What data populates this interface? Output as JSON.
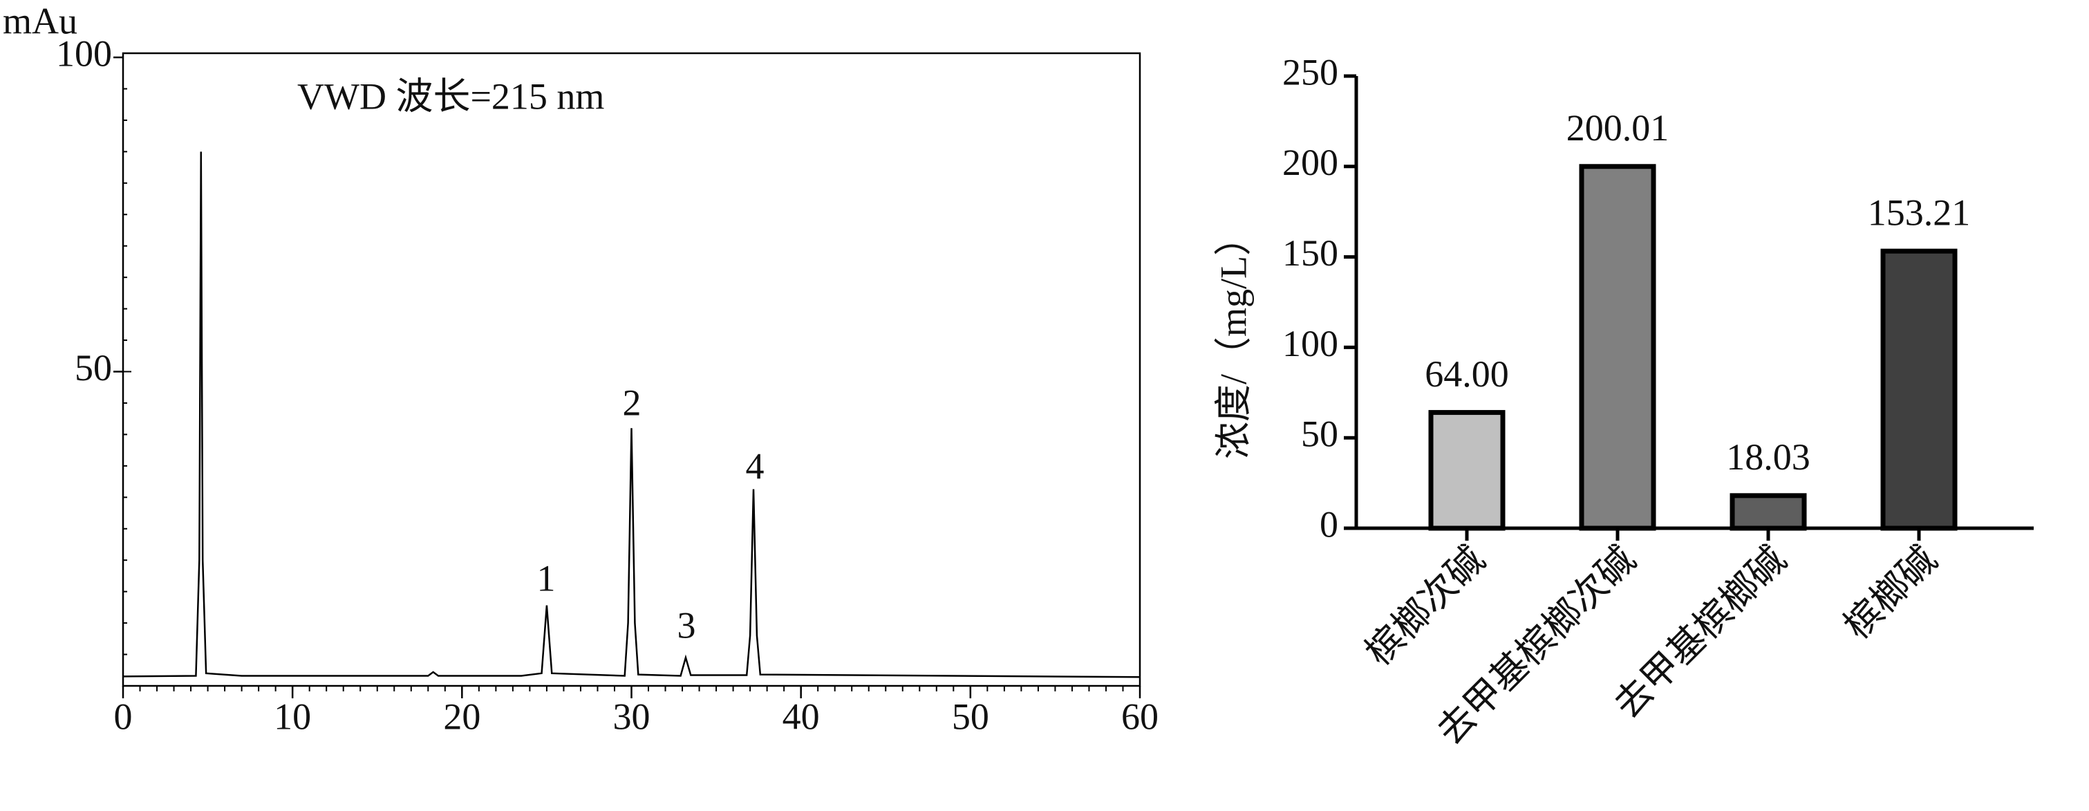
{
  "chart_data": [
    {
      "type": "line",
      "ylabel": "mAu",
      "annotation": "VWD 波长=215 nm",
      "xlim": [
        0,
        60
      ],
      "xticks": [
        0,
        10,
        20,
        30,
        40,
        50,
        60
      ],
      "ylim": [
        0,
        100
      ],
      "yticks": [
        50,
        100
      ],
      "peak_labels": [
        "1",
        "2",
        "3",
        "4"
      ],
      "series": [
        {
          "color": "#000000",
          "x": [
            0,
            4.3,
            4.5,
            4.6,
            4.7,
            4.9,
            7,
            18.0,
            18.3,
            18.6,
            23.5,
            24.7,
            25.0,
            25.3,
            29.6,
            29.8,
            30.0,
            30.2,
            30.4,
            32.9,
            33.2,
            33.5,
            36.8,
            37.0,
            37.2,
            37.4,
            37.6,
            60
          ],
          "values": [
            1.5,
            1.6,
            20,
            85,
            20,
            2.0,
            1.6,
            1.6,
            2.2,
            1.6,
            1.6,
            2.0,
            12.8,
            2.0,
            1.6,
            10,
            41,
            10,
            1.8,
            1.6,
            4.5,
            1.7,
            1.7,
            8,
            31.3,
            8,
            1.8,
            1.4
          ]
        }
      ]
    },
    {
      "type": "bar",
      "ylabel": "浓度/（mg/L）",
      "categories": [
        "槟榔次碱",
        "去甲基槟榔次碱",
        "去甲基槟榔碱",
        "槟榔碱"
      ],
      "values": [
        64.0,
        200.01,
        18.03,
        153.21
      ],
      "value_labels": [
        "64.00",
        "200.01",
        "18.03",
        "153.21"
      ],
      "colors": [
        "#c0c0c0",
        "#808080",
        "#5e5e5e",
        "#404040"
      ],
      "ylim": [
        0,
        250
      ],
      "yticks": [
        0,
        50,
        100,
        150,
        200,
        250
      ]
    }
  ]
}
